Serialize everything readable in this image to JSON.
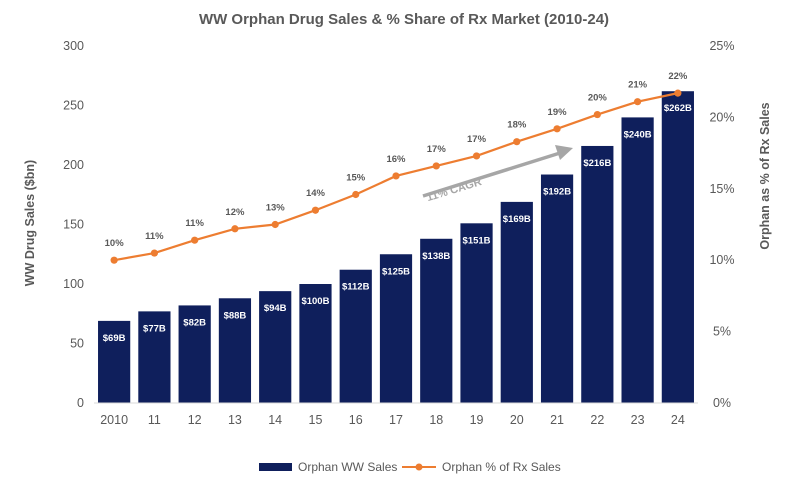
{
  "chart_data": {
    "type": "bar",
    "title": "WW Orphan Drug Sales & % Share of Rx Market (2010-24)",
    "categories": [
      "2010",
      "11",
      "12",
      "13",
      "14",
      "15",
      "16",
      "17",
      "18",
      "19",
      "20",
      "21",
      "22",
      "23",
      "24"
    ],
    "ylabel": "WW Drug Sales ($bn)",
    "y2label": "Orphan  as % of Rx Sales",
    "ylim": [
      0,
      300
    ],
    "yticks": [
      "0",
      "50",
      "100",
      "150",
      "200",
      "250",
      "300"
    ],
    "y2lim": [
      0,
      25
    ],
    "y2ticks": [
      "0%",
      "5%",
      "10%",
      "15%",
      "20%",
      "25%"
    ],
    "series": [
      {
        "name": "Orphan WW Sales",
        "type": "bar",
        "axis": "left",
        "color": "#0f1f5c",
        "values": [
          69,
          77,
          82,
          88,
          94,
          100,
          112,
          125,
          138,
          151,
          169,
          192,
          216,
          240,
          262
        ],
        "labels": [
          "$69B",
          "$77B",
          "$82B",
          "$88B",
          "$94B",
          "$100B",
          "$112B",
          "$125B",
          "$138B",
          "$151B",
          "$169B",
          "$192B",
          "$216B",
          "$240B",
          "$262B"
        ]
      },
      {
        "name": "Orphan % of Rx Sales",
        "type": "line",
        "axis": "right",
        "color": "#ed7d31",
        "values": [
          10,
          10.5,
          11.4,
          12.2,
          12.5,
          13.5,
          14.6,
          15.9,
          16.6,
          17.3,
          18.3,
          19.2,
          20.2,
          21.1,
          21.7
        ],
        "labels": [
          "10%",
          "11%",
          "11%",
          "12%",
          "13%",
          "14%",
          "15%",
          "16%",
          "17%",
          "17%",
          "18%",
          "19%",
          "20%",
          "21%",
          "22%"
        ]
      }
    ],
    "annotation": {
      "text": "11% CAGR",
      "color": "#a6a6a6"
    },
    "grid": false,
    "legend": "bottom"
  }
}
